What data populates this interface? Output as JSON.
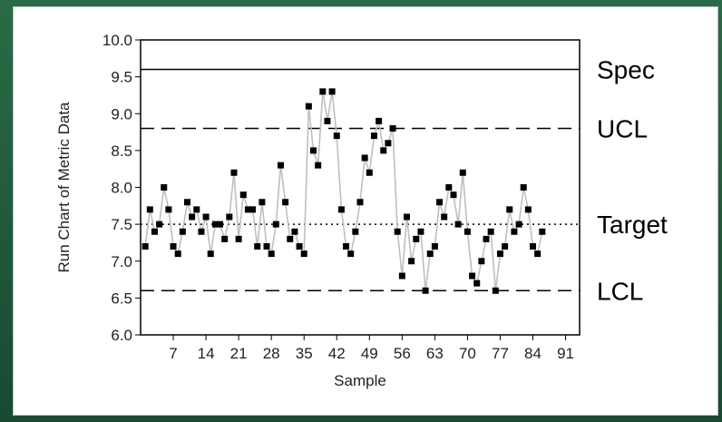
{
  "chart_data": {
    "type": "line",
    "title": "",
    "xlabel": "Sample",
    "ylabel": "Run Chart of Metric Data",
    "xlim": [
      0,
      94
    ],
    "ylim": [
      6.0,
      10.0
    ],
    "x_ticks": [
      7,
      14,
      21,
      28,
      35,
      42,
      49,
      56,
      63,
      70,
      77,
      84,
      91
    ],
    "y_ticks": [
      "6.0",
      "6.5",
      "7.0",
      "7.5",
      "8.0",
      "8.5",
      "9.0",
      "9.5",
      "10.0"
    ],
    "series": [
      {
        "values": [
          7.2,
          7.7,
          7.4,
          7.5,
          8.0,
          7.7,
          7.2,
          7.1,
          7.4,
          7.8,
          7.6,
          7.7,
          7.4,
          7.6,
          7.1,
          7.5,
          7.5,
          7.3,
          7.6,
          8.2,
          7.3,
          7.9,
          7.7,
          7.7,
          7.2,
          7.8,
          7.2,
          7.1,
          7.5,
          8.3,
          7.8,
          7.3,
          7.4,
          7.2,
          7.1,
          9.1,
          8.5,
          8.3,
          9.3,
          8.9,
          9.3,
          8.7,
          7.7,
          7.2,
          7.1,
          7.4,
          7.8,
          8.4,
          8.2,
          8.7,
          8.9,
          8.5,
          8.6,
          8.8,
          7.4,
          6.8,
          7.6,
          7.0,
          7.3,
          7.4,
          6.6,
          7.1,
          7.2,
          7.8,
          7.6,
          8.0,
          7.9,
          7.5,
          8.2,
          7.4,
          6.8,
          6.7,
          7.0,
          7.3,
          7.4,
          6.6,
          7.1,
          7.2,
          7.7,
          7.4,
          7.5,
          8.0,
          7.7,
          7.2,
          7.1,
          7.4
        ]
      }
    ],
    "reference_lines": [
      {
        "label": "Spec",
        "value": 9.6,
        "style": "solid"
      },
      {
        "label": "UCL",
        "value": 8.8,
        "style": "dashed"
      },
      {
        "label": "Target",
        "value": 7.5,
        "style": "dotted"
      },
      {
        "label": "LCL",
        "value": 6.6,
        "style": "dashed"
      }
    ],
    "colors": {
      "line": "#bfbfbf",
      "marker": "#000000",
      "reference": "#000000",
      "background": "#1f5a3a"
    }
  }
}
